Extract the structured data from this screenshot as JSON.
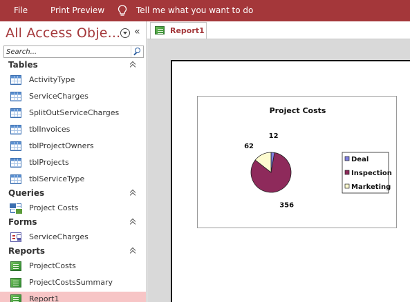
{
  "ribbon": {
    "file": "File",
    "print_preview": "Print Preview",
    "tell_me": "Tell me what you want to do"
  },
  "nav": {
    "title": "All Access Obje...",
    "search_placeholder": "Search...",
    "groups": {
      "tables": {
        "label": "Tables",
        "items": [
          "ActivityType",
          "ServiceCharges",
          "SplitOutServiceCharges",
          "tblInvoices",
          "tblProjectOwners",
          "tblProjects",
          "tblServiceType"
        ]
      },
      "queries": {
        "label": "Queries",
        "items": [
          "Project Costs"
        ]
      },
      "forms": {
        "label": "Forms",
        "items": [
          "ServiceCharges"
        ]
      },
      "reports": {
        "label": "Reports",
        "items": [
          "ProjectCosts",
          "ProjectCostsSummary",
          "Report1"
        ]
      }
    },
    "selected_item": "Report1"
  },
  "document_tab": {
    "label": "Report1"
  },
  "colors": {
    "ribbon": "#a4373a",
    "selection": "#f7c5c6",
    "deal": "#7f7fe0",
    "inspection": "#8e2a5b",
    "marketing": "#fdfbd0"
  },
  "chart_data": {
    "type": "pie",
    "title": "Project Costs",
    "labels": [
      "Deal",
      "Inspection",
      "Marketing"
    ],
    "values": [
      12,
      356,
      62
    ],
    "colors": [
      "#7f7fe0",
      "#8e2a5b",
      "#fdfbd0"
    ],
    "legend_position": "right"
  }
}
